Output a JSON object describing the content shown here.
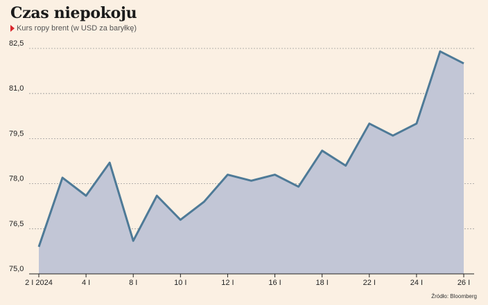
{
  "title": "Czas niepokoju",
  "subtitle": "Kurs ropy brent (w USD za baryłkę)",
  "source": "Źródło: Bloomberg",
  "colors": {
    "line": "#4e7a97",
    "area": "#c2c6d6",
    "grid": "#999999",
    "marker": "#d9262c",
    "background": "#fbf0e3"
  },
  "chart_data": {
    "type": "area",
    "title": "Czas niepokoju",
    "subtitle": "Kurs ropy brent (w USD za baryłkę)",
    "x": [
      "2024-01-02",
      "2024-01-03",
      "2024-01-04",
      "2024-01-05",
      "2024-01-08",
      "2024-01-09",
      "2024-01-10",
      "2024-01-11",
      "2024-01-12",
      "2024-01-15",
      "2024-01-16",
      "2024-01-17",
      "2024-01-18",
      "2024-01-19",
      "2024-01-22",
      "2024-01-23",
      "2024-01-24",
      "2024-01-25",
      "2024-01-26"
    ],
    "x_ticks": [
      {
        "x": "2024-01-02",
        "label": "2 I 2024"
      },
      {
        "x": "2024-01-04",
        "label": "4 I"
      },
      {
        "x": "2024-01-08",
        "label": "8 I"
      },
      {
        "x": "2024-01-10",
        "label": "10 I"
      },
      {
        "x": "2024-01-12",
        "label": "12 I"
      },
      {
        "x": "2024-01-16",
        "label": "16 I"
      },
      {
        "x": "2024-01-18",
        "label": "18 I"
      },
      {
        "x": "2024-01-22",
        "label": "22 I"
      },
      {
        "x": "2024-01-24",
        "label": "24 I"
      },
      {
        "x": "2024-01-26",
        "label": "26 I"
      }
    ],
    "values": [
      75.9,
      78.2,
      77.6,
      78.7,
      76.1,
      77.6,
      76.8,
      77.4,
      78.3,
      78.1,
      78.3,
      77.9,
      79.1,
      78.6,
      80.0,
      79.6,
      80.0,
      82.4,
      82.0
    ],
    "ylim": [
      75.0,
      82.5
    ],
    "yticks": [
      75.0,
      76.5,
      78.0,
      79.5,
      81.0,
      82.5
    ],
    "ytick_labels": [
      "75,0",
      "76,5",
      "78,0",
      "79,5",
      "81,0",
      "82,5"
    ],
    "grid": true,
    "xlabel": "",
    "ylabel": ""
  }
}
